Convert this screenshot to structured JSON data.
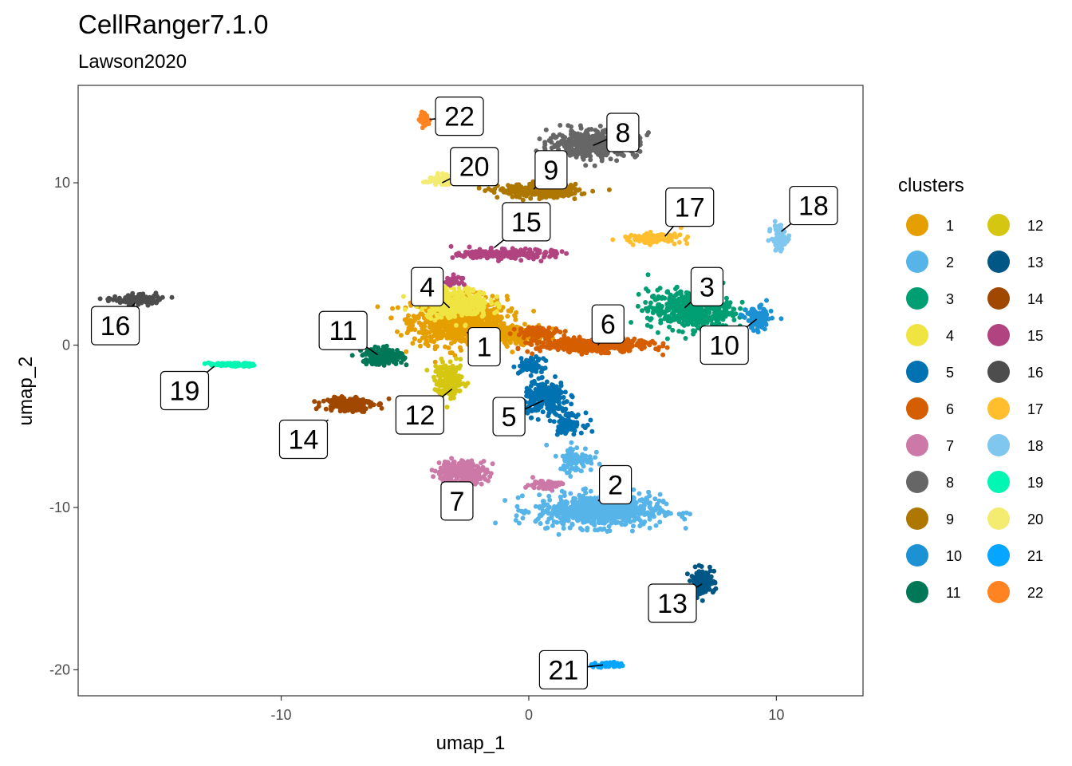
{
  "chart_data": {
    "type": "scatter",
    "title": "CellRanger7.1.0",
    "subtitle": "Lawson2020",
    "xlabel": "umap_1",
    "ylabel": "umap_2",
    "xlim": [
      -18.2,
      13.5
    ],
    "ylim": [
      -21.6,
      16.0
    ],
    "xticks": [
      -10,
      0,
      10
    ],
    "yticks": [
      10,
      0,
      -10,
      -20
    ],
    "grid": false,
    "legend": {
      "title": "clusters",
      "placement": "right",
      "columns": 2
    },
    "clusters": [
      {
        "id": "1",
        "color": "#E69F00",
        "label_pos": [
          -1.8,
          -0.1
        ],
        "anchor": [
          -2.5,
          0.8
        ],
        "blobs": [
          [
            -2.8,
            1.5,
            1.9,
            1.5,
            900
          ],
          [
            -0.6,
            0.7,
            1.2,
            0.5,
            200
          ]
        ]
      },
      {
        "id": "2",
        "color": "#56B4E9",
        "label_pos": [
          3.5,
          -8.6
        ],
        "anchor": [
          2.8,
          -9.6
        ],
        "blobs": [
          [
            2.8,
            -10.2,
            2.5,
            1.0,
            700
          ],
          [
            1.9,
            -7.0,
            0.7,
            0.8,
            90
          ]
        ]
      },
      {
        "id": "3",
        "color": "#009E73",
        "label_pos": [
          7.2,
          3.6
        ],
        "anchor": [
          6.3,
          2.3
        ],
        "blobs": [
          [
            6.5,
            2.2,
            1.7,
            1.2,
            500
          ]
        ]
      },
      {
        "id": "4",
        "color": "#F0E442",
        "label_pos": [
          -4.1,
          3.6
        ],
        "anchor": [
          -3.2,
          2.3
        ],
        "blobs": [
          [
            -3.0,
            2.6,
            1.4,
            0.9,
            350
          ]
        ]
      },
      {
        "id": "5",
        "color": "#0072B2",
        "label_pos": [
          -0.8,
          -4.4
        ],
        "anchor": [
          0.6,
          -3.4
        ],
        "blobs": [
          [
            0.7,
            -3.3,
            0.9,
            1.0,
            250
          ],
          [
            1.6,
            -4.8,
            0.6,
            0.6,
            80
          ],
          [
            0.1,
            -1.3,
            0.5,
            0.5,
            60
          ]
        ]
      },
      {
        "id": "6",
        "color": "#D55E00",
        "label_pos": [
          3.2,
          1.3
        ],
        "anchor": [
          2.8,
          0.0
        ],
        "blobs": [
          [
            2.6,
            0.0,
            2.2,
            0.4,
            500
          ],
          [
            0.4,
            0.8,
            0.9,
            0.3,
            100
          ]
        ]
      },
      {
        "id": "7",
        "color": "#CC79A7",
        "label_pos": [
          -2.9,
          -9.6
        ],
        "anchor": [
          -2.9,
          -8.6
        ],
        "blobs": [
          [
            -2.7,
            -7.8,
            1.0,
            0.7,
            250
          ],
          [
            0.6,
            -8.6,
            0.7,
            0.3,
            60
          ]
        ]
      },
      {
        "id": "8",
        "color": "#666666",
        "label_pos": [
          3.8,
          13.1
        ],
        "anchor": [
          2.6,
          12.3
        ],
        "blobs": [
          [
            2.6,
            12.4,
            1.8,
            0.8,
            450
          ]
        ]
      },
      {
        "id": "9",
        "color": "#AD7700",
        "label_pos": [
          0.9,
          10.8
        ],
        "anchor": [
          0.2,
          9.6
        ],
        "blobs": [
          [
            0.4,
            9.5,
            1.6,
            0.4,
            300
          ]
        ]
      },
      {
        "id": "10",
        "color": "#1C91D4",
        "label_pos": [
          7.9,
          0.0
        ],
        "anchor": [
          9.2,
          1.6
        ],
        "blobs": [
          [
            9.3,
            1.6,
            0.5,
            0.7,
            120
          ]
        ]
      },
      {
        "id": "11",
        "color": "#007756",
        "label_pos": [
          -7.5,
          0.9
        ],
        "anchor": [
          -6.1,
          -0.6
        ],
        "blobs": [
          [
            -5.9,
            -0.7,
            0.8,
            0.5,
            180
          ]
        ]
      },
      {
        "id": "12",
        "color": "#D5C711",
        "label_pos": [
          -4.4,
          -4.3
        ],
        "anchor": [
          -3.1,
          -2.7
        ],
        "blobs": [
          [
            -3.2,
            -2.2,
            0.6,
            1.1,
            150
          ]
        ]
      },
      {
        "id": "13",
        "color": "#005685",
        "label_pos": [
          5.8,
          -15.9
        ],
        "anchor": [
          7.0,
          -14.7
        ],
        "blobs": [
          [
            7.0,
            -14.6,
            0.5,
            0.8,
            120
          ]
        ]
      },
      {
        "id": "14",
        "color": "#A04700",
        "label_pos": [
          -9.1,
          -5.8
        ],
        "anchor": [
          -8.1,
          -4.6
        ],
        "blobs": [
          [
            -7.3,
            -3.6,
            1.0,
            0.5,
            150
          ]
        ]
      },
      {
        "id": "15",
        "color": "#B14380",
        "label_pos": [
          -0.1,
          7.6
        ],
        "anchor": [
          -1.4,
          6.0
        ],
        "blobs": [
          [
            -0.9,
            5.6,
            1.9,
            0.3,
            200
          ],
          [
            -3.0,
            4.0,
            0.4,
            0.3,
            30
          ]
        ]
      },
      {
        "id": "16",
        "color": "#4D4D4D",
        "label_pos": [
          -16.7,
          1.2
        ],
        "anchor": [
          -15.9,
          2.6
        ],
        "blobs": [
          [
            -15.8,
            2.8,
            1.0,
            0.3,
            120
          ]
        ]
      },
      {
        "id": "17",
        "color": "#FFBE2D",
        "label_pos": [
          6.5,
          8.5
        ],
        "anchor": [
          5.5,
          6.7
        ],
        "blobs": [
          [
            5.0,
            6.6,
            1.2,
            0.3,
            120
          ]
        ]
      },
      {
        "id": "18",
        "color": "#80C7EF",
        "label_pos": [
          11.5,
          8.6
        ],
        "anchor": [
          10.2,
          7.0
        ],
        "blobs": [
          [
            10.1,
            6.6,
            0.3,
            0.8,
            80
          ]
        ]
      },
      {
        "id": "19",
        "color": "#00F6B3",
        "label_pos": [
          -13.9,
          -2.8
        ],
        "anchor": [
          -12.7,
          -1.3
        ],
        "blobs": [
          [
            -12.0,
            -1.2,
            0.9,
            0.1,
            100
          ]
        ]
      },
      {
        "id": "20",
        "color": "#F4EB71",
        "label_pos": [
          -2.2,
          11.0
        ],
        "anchor": [
          -3.5,
          10.0
        ],
        "blobs": [
          [
            -3.6,
            10.2,
            0.6,
            0.3,
            60
          ]
        ]
      },
      {
        "id": "21",
        "color": "#06A5FF",
        "label_pos": [
          1.4,
          -20.0
        ],
        "anchor": [
          3.0,
          -19.7
        ],
        "blobs": [
          [
            3.2,
            -19.7,
            0.6,
            0.2,
            40
          ]
        ]
      },
      {
        "id": "22",
        "color": "#FF8320",
        "label_pos": [
          -2.8,
          14.1
        ],
        "anchor": [
          -4.0,
          13.9
        ],
        "blobs": [
          [
            -4.2,
            13.9,
            0.2,
            0.4,
            40
          ]
        ]
      }
    ]
  }
}
